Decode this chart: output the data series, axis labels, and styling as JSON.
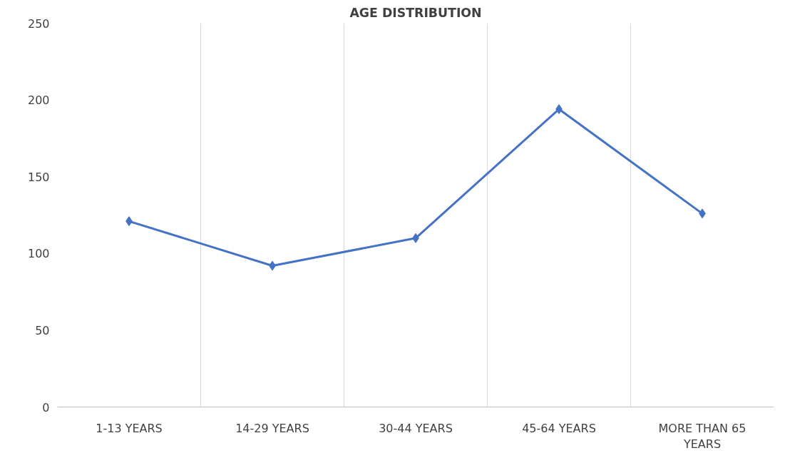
{
  "chart_data": {
    "type": "line",
    "title": "AGE DISTRIBUTION",
    "categories": [
      "1-13 YEARS",
      "14-29 YEARS",
      "30-44 YEARS",
      "45-64 YEARS",
      "MORE THAN 65 YEARS"
    ],
    "series": [
      {
        "color": "#4472c4",
        "values": [
          121,
          92,
          110,
          194,
          126
        ]
      }
    ],
    "ylim": [
      0,
      250
    ],
    "yticks": [
      0,
      50,
      100,
      150,
      200,
      250
    ],
    "grid": "x",
    "marker": "diamond",
    "line_style": "solid"
  }
}
